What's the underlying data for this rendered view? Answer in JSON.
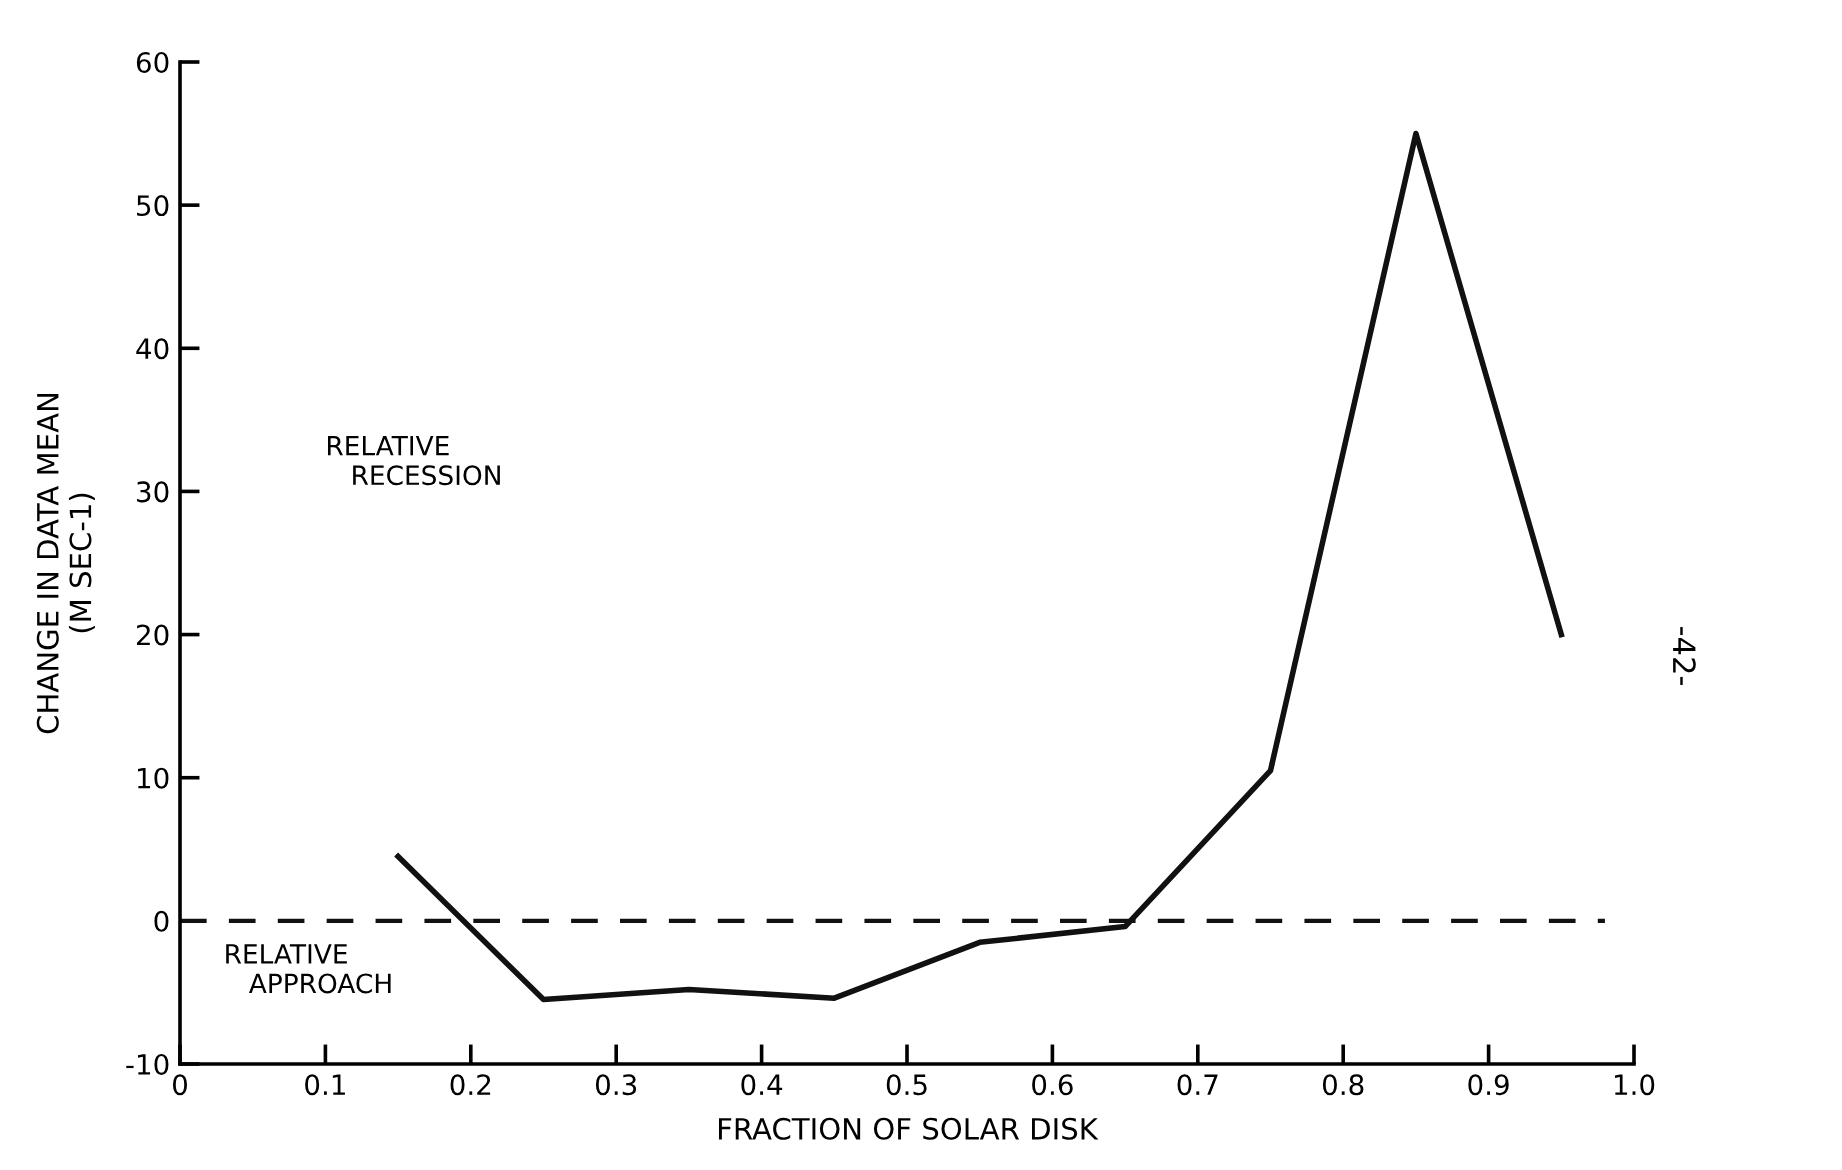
{
  "chart_data": {
    "type": "line",
    "xlabel": "FRACTION OF SOLAR DISK",
    "ylabel": "CHANGE IN DATA MEAN\n(M SEC-1)",
    "x": [
      0.15,
      0.25,
      0.35,
      0.45,
      0.55,
      0.65,
      0.75,
      0.85,
      0.95
    ],
    "series": [
      {
        "color": "#111111",
        "values": [
          4.5,
          -5.5,
          -4.8,
          -5.4,
          -1.5,
          -0.4,
          10.5,
          55,
          20
        ]
      }
    ],
    "xlim": [
      0,
      1.0
    ],
    "ylim": [
      -10,
      60
    ],
    "xticks": [
      {
        "value": 0,
        "label": "0"
      },
      0.1,
      0.2,
      0.3,
      0.4,
      0.5,
      0.6,
      0.7,
      0.8,
      0.9,
      {
        "value": 1.0,
        "label": "1.0"
      }
    ],
    "yticks": [
      -10,
      0,
      10,
      20,
      30,
      40,
      50,
      60
    ],
    "ref_lines": [
      {
        "axis": "y",
        "value": 0,
        "color": "#111111",
        "line_style": "dashed"
      }
    ],
    "annotations": [
      "RELATIVE\n   RECESSION",
      "RELATIVE\n   APPROACH",
      "-42-"
    ],
    "grid": false,
    "legend": false,
    "marker": "none",
    "line_style": "solid"
  }
}
